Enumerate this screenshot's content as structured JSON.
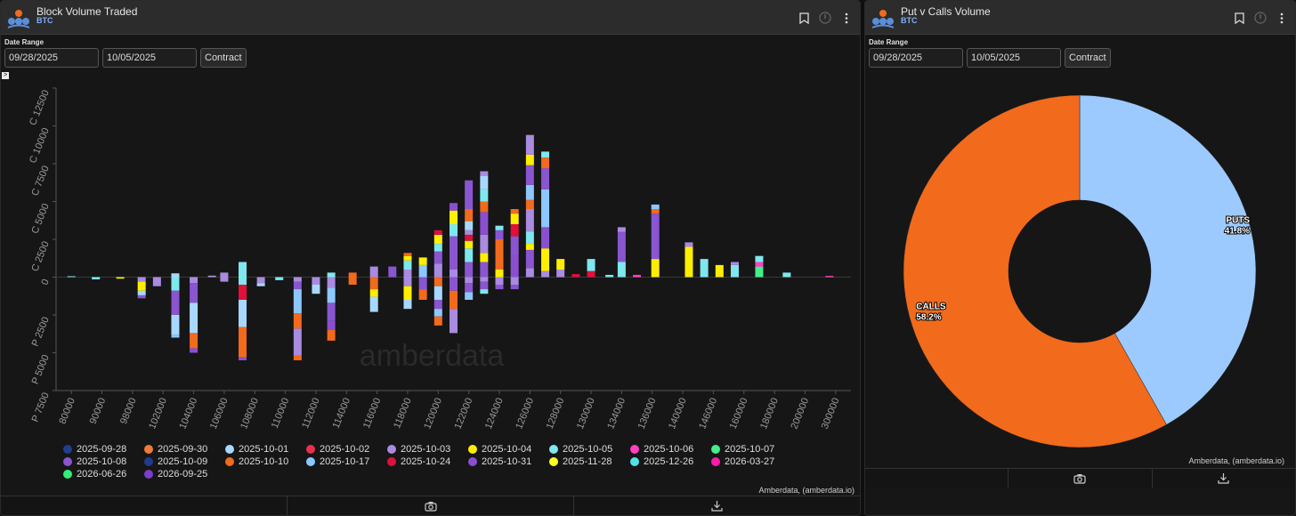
{
  "left_panel": {
    "title": "Block Volume Traded",
    "subtitle": "BTC",
    "date_range_label": "Date Range",
    "date_from": "09/28/2025",
    "date_to": "10/05/2025",
    "contract_label": "Contract",
    "toggle_glyph": ">",
    "credit": "Amberdata, (amberdata.io)",
    "watermark": "amberdata"
  },
  "right_panel": {
    "title": "Put v Calls Volume",
    "subtitle": "BTC",
    "date_range_label": "Date Range",
    "date_from": "09/28/2025",
    "date_to": "10/05/2025",
    "contract_label": "Contract",
    "credit": "Amberdata, (amberdata.io)"
  },
  "chart_data": [
    {
      "type": "bar",
      "stacked": true,
      "title": "Block Volume Traded",
      "ylabel_format": "C for calls (positive), P for puts (negative)",
      "ylim": [
        -7500,
        12500
      ],
      "y_ticks": [
        {
          "value": 12500,
          "label": "C 12500"
        },
        {
          "value": 10000,
          "label": "C 10000"
        },
        {
          "value": 7500,
          "label": "C 7500"
        },
        {
          "value": 5000,
          "label": "C 5000"
        },
        {
          "value": 2500,
          "label": "C 2500"
        },
        {
          "value": 0,
          "label": "0"
        },
        {
          "value": -2500,
          "label": "P 2500"
        },
        {
          "value": -5000,
          "label": "P 5000"
        },
        {
          "value": -7500,
          "label": "P 7500"
        }
      ],
      "x_tick_labels": [
        "80000",
        "90000",
        "98000",
        "102000",
        "104000",
        "106000",
        "108000",
        "110000",
        "112000",
        "114000",
        "116000",
        "118000",
        "120000",
        "122000",
        "124000",
        "126000",
        "128000",
        "130000",
        "134000",
        "136000",
        "140000",
        "146000",
        "160000",
        "180000",
        "200000",
        "300000"
      ],
      "legend": [
        {
          "label": "2025-09-28",
          "color": "#1f3f8f"
        },
        {
          "label": "2025-09-30",
          "color": "#f07a3a"
        },
        {
          "label": "2025-10-01",
          "color": "#a8d8ff"
        },
        {
          "label": "2025-10-02",
          "color": "#e8304f"
        },
        {
          "label": "2025-10-03",
          "color": "#a98be0"
        },
        {
          "label": "2025-10-04",
          "color": "#ffee00"
        },
        {
          "label": "2025-10-05",
          "color": "#7fe7ee"
        },
        {
          "label": "2025-10-06",
          "color": "#ff3fbf"
        },
        {
          "label": "2025-10-07",
          "color": "#44ee88"
        },
        {
          "label": "2025-10-08",
          "color": "#8a55d0"
        },
        {
          "label": "2025-10-09",
          "color": "#233a8a"
        },
        {
          "label": "2025-10-10",
          "color": "#f26a1b"
        },
        {
          "label": "2025-10-17",
          "color": "#8cc8ff"
        },
        {
          "label": "2025-10-24",
          "color": "#e0103a"
        },
        {
          "label": "2025-10-31",
          "color": "#8a4fd0"
        },
        {
          "label": "2025-11-28",
          "color": "#ffff22"
        },
        {
          "label": "2025-12-26",
          "color": "#55e0e8"
        },
        {
          "label": "2026-03-27",
          "color": "#ff1aa8"
        },
        {
          "label": "2026-06-26",
          "color": "#33ee77"
        },
        {
          "label": "2026-09-25",
          "color": "#7a3ec8"
        }
      ],
      "bars": [
        {
          "strike": "80000",
          "side": "call",
          "segments": [
            [
              "2025-10-05",
              60
            ]
          ]
        },
        {
          "strike": "80000",
          "side": "put",
          "segments": [
            [
              "2025-10-01",
              60
            ]
          ]
        },
        {
          "strike": "90000",
          "side": "put",
          "segments": [
            [
              "2025-10-05",
              150
            ]
          ]
        },
        {
          "strike": "94000",
          "side": "put",
          "segments": [
            [
              "2025-10-04",
              120
            ]
          ]
        },
        {
          "strike": "98000",
          "side": "put",
          "segments": [
            [
              "2025-10-03",
              300
            ],
            [
              "2025-10-04",
              600
            ],
            [
              "2025-10-01",
              300
            ],
            [
              "2025-10-08",
              200
            ]
          ]
        },
        {
          "strike": "98000",
          "side": "put",
          "offset": 1,
          "segments": [
            [
              "2025-10-03",
              600
            ]
          ]
        },
        {
          "strike": "102000",
          "side": "call",
          "segments": [
            [
              "2025-10-01",
              250
            ]
          ]
        },
        {
          "strike": "102000",
          "side": "put",
          "segments": [
            [
              "2025-10-05",
              1000
            ],
            [
              "2025-10-08",
              1500
            ],
            [
              "2025-10-01",
              1300
            ],
            [
              "2025-10-17",
              200
            ]
          ]
        },
        {
          "strike": "102000",
          "side": "put",
          "offset": 1,
          "segments": [
            [
              "2025-10-03",
              400
            ],
            [
              "2025-10-08",
              1300
            ],
            [
              "2025-10-01",
              2000
            ],
            [
              "2025-10-10",
              1000
            ],
            [
              "2025-10-31",
              500
            ]
          ]
        },
        {
          "strike": "104000",
          "side": "call",
          "segments": [
            [
              "2025-10-03",
              300
            ]
          ]
        },
        {
          "strike": "104000",
          "side": "put",
          "segments": [
            [
              "2025-10-03",
              300
            ]
          ]
        },
        {
          "strike": "106000",
          "side": "call",
          "segments": [
            [
              "2025-10-05",
              1000
            ]
          ]
        },
        {
          "strike": "106000",
          "side": "put",
          "segments": [
            [
              "2025-10-05",
              500
            ],
            [
              "2025-10-24",
              1000
            ],
            [
              "2025-10-01",
              1800
            ],
            [
              "2025-10-10",
              2000
            ],
            [
              "2025-10-31",
              300
            ]
          ]
        },
        {
          "strike": "108000",
          "side": "put",
          "segments": [
            [
              "2025-10-03",
              400
            ]
          ]
        },
        {
          "strike": "108000",
          "side": "put",
          "offset": 1,
          "segments": [
            [
              "2025-10-05",
              200
            ]
          ]
        },
        {
          "strike": "110000",
          "side": "put",
          "segments": [
            [
              "2025-10-03",
              300
            ],
            [
              "2025-10-08",
              500
            ],
            [
              "2025-10-17",
              1600
            ],
            [
              "2025-10-10",
              1000
            ],
            [
              "2025-10-03",
              1800
            ],
            [
              "2025-10-10",
              300
            ]
          ]
        },
        {
          "strike": "112000",
          "side": "put",
          "segments": [
            [
              "2025-10-03",
              500
            ],
            [
              "2025-10-01",
              600
            ]
          ]
        },
        {
          "strike": "114000",
          "side": "call",
          "segments": [
            [
              "2025-10-05",
              300
            ]
          ]
        },
        {
          "strike": "114000",
          "side": "put",
          "segments": [
            [
              "2025-10-03",
              700
            ],
            [
              "2025-10-17",
              1000
            ],
            [
              "2025-10-08",
              1200
            ],
            [
              "2025-10-31",
              600
            ],
            [
              "2025-10-10",
              700
            ]
          ]
        },
        {
          "strike": "116000",
          "side": "call",
          "segments": [
            [
              "2025-10-10",
              300
            ]
          ]
        },
        {
          "strike": "116000",
          "side": "put",
          "segments": [
            [
              "2025-10-10",
              500
            ]
          ]
        },
        {
          "strike": "118000",
          "side": "call",
          "segments": [
            [
              "2025-10-03",
              700
            ]
          ]
        },
        {
          "strike": "118000",
          "side": "put",
          "segments": [
            [
              "2025-10-10",
              800
            ],
            [
              "2025-10-04",
              500
            ],
            [
              "2025-10-01",
              1000
            ]
          ]
        },
        {
          "strike": "118000",
          "side": "call",
          "offset": 1,
          "segments": [
            [
              "2025-10-08",
              700
            ]
          ]
        }
      ]
    },
    {
      "type": "pie",
      "donut": true,
      "title": "Put v Calls Volume",
      "slices": [
        {
          "label": "PUTS",
          "value": 41.8,
          "pct_label": "41.8%",
          "color": "#9ccaff"
        },
        {
          "label": "CALLS",
          "value": 58.2,
          "pct_label": "58.2%",
          "color": "#f26a1b"
        }
      ]
    }
  ],
  "footer": {
    "camera_icon": "camera-icon",
    "download_icon": "download-icon"
  }
}
